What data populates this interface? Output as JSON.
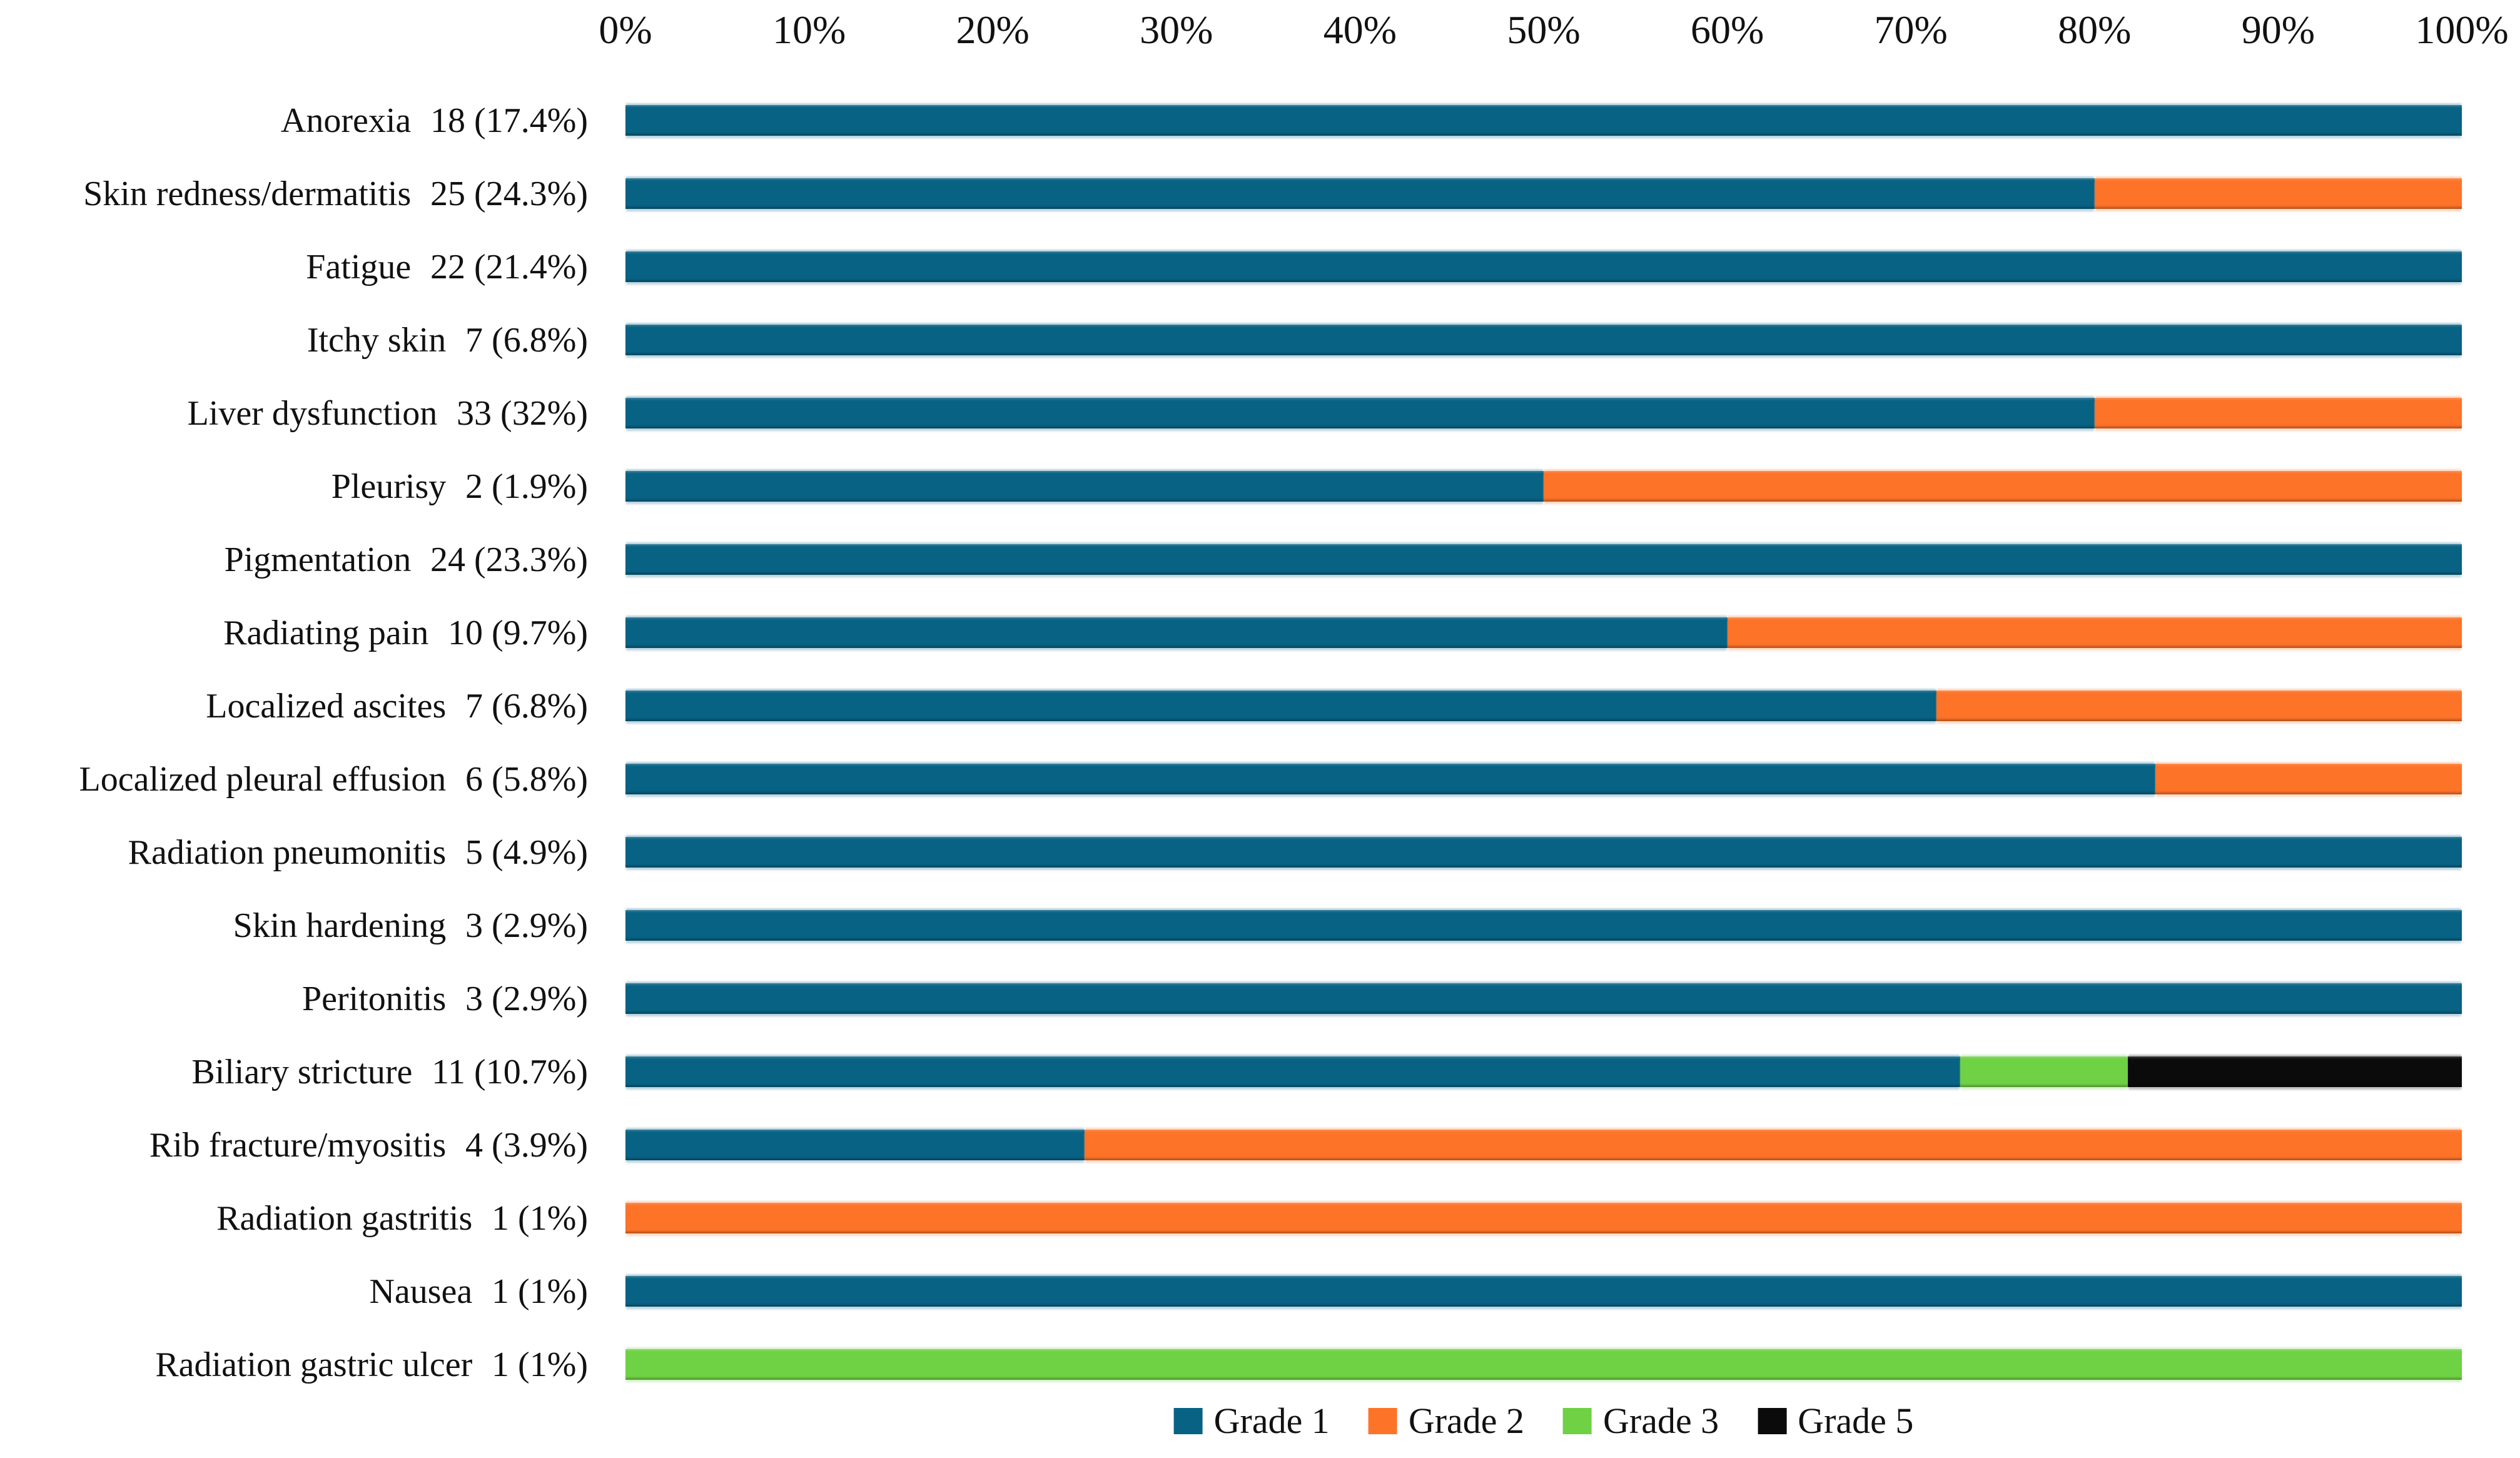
{
  "figure": {
    "background": "#ffffff",
    "axis": {
      "position": "top",
      "ticks": [
        "0%",
        "10%",
        "20%",
        "30%",
        "40%",
        "50%",
        "60%",
        "70%",
        "80%",
        "90%",
        "100%"
      ]
    },
    "legend": {
      "position": "bottom",
      "items": [
        {
          "label": "Grade 1",
          "color": "#086284"
        },
        {
          "label": "Grade 2",
          "color": "#FD7328"
        },
        {
          "label": "Grade 3",
          "color": "#6FD144"
        },
        {
          "label": "Grade 5",
          "color": "#0B0B0B"
        }
      ]
    }
  },
  "chart_data": {
    "type": "bar",
    "orientation": "horizontal",
    "stacked": true,
    "units": "percent of cases at each grade",
    "xlim": [
      0,
      100
    ],
    "x_ticks": [
      "0%",
      "10%",
      "20%",
      "30%",
      "40%",
      "50%",
      "60%",
      "70%",
      "80%",
      "90%",
      "100%"
    ],
    "grid": false,
    "legend_position": "bottom",
    "categories": [
      "Anorexia",
      "Skin redness/dermatitis",
      "Fatigue",
      "Itchy skin",
      "Liver dysfunction",
      "Pleurisy",
      "Pigmentation",
      "Radiating pain",
      "Localized ascites",
      "Localized pleural effusion",
      "Radiation pneumonitis",
      "Skin hardening",
      "Peritonitis",
      "Biliary stricture",
      "Rib fracture/myositis",
      "Radiation gastritis",
      "Nausea",
      "Radiation gastric ulcer"
    ],
    "category_counts": [
      "18 (17.4%)",
      "25 (24.3%)",
      "22 (21.4%)",
      "7 (6.8%)",
      "33 (32%)",
      "2 (1.9%)",
      "24 (23.3%)",
      "10 (9.7%)",
      "7 (6.8%)",
      "6 (5.8%)",
      "5 (4.9%)",
      "3 (2.9%)",
      "3 (2.9%)",
      "11 (10.7%)",
      "4 (3.9%)",
      "1 (1%)",
      "1 (1%)",
      "1 (1%)"
    ],
    "series": [
      {
        "name": "Grade 1",
        "color": "#086284",
        "values": [
          100,
          80,
          100,
          100,
          80,
          50,
          100,
          60,
          71.4,
          83.3,
          100,
          100,
          100,
          72.7,
          25,
          0,
          100,
          0
        ]
      },
      {
        "name": "Grade 2",
        "color": "#FD7328",
        "values": [
          0,
          20,
          0,
          0,
          20,
          50,
          0,
          40,
          28.6,
          16.7,
          0,
          0,
          0,
          0,
          75,
          100,
          0,
          0
        ]
      },
      {
        "name": "Grade 3",
        "color": "#6FD144",
        "values": [
          0,
          0,
          0,
          0,
          0,
          0,
          0,
          0,
          0,
          0,
          0,
          0,
          0,
          9.1,
          0,
          0,
          0,
          100
        ]
      },
      {
        "name": "Grade 5",
        "color": "#0B0B0B",
        "values": [
          0,
          0,
          0,
          0,
          0,
          0,
          0,
          0,
          0,
          0,
          0,
          0,
          0,
          18.2,
          0,
          0,
          0,
          0
        ]
      }
    ]
  }
}
